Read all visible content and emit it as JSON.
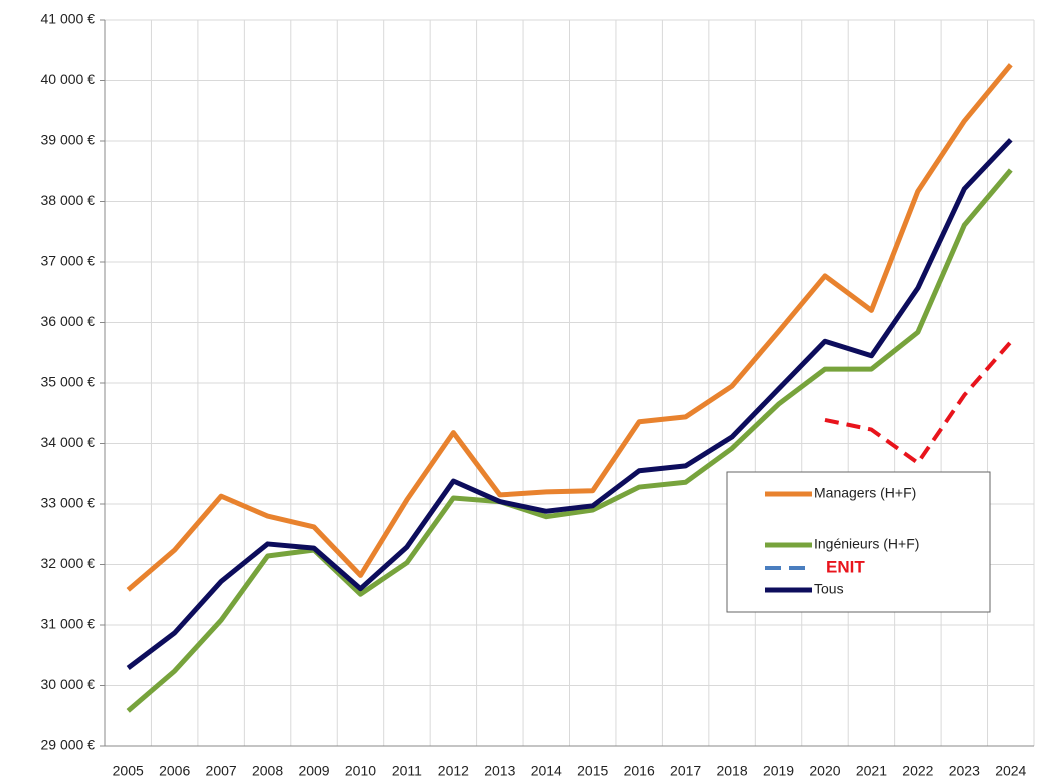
{
  "chart_data": {
    "type": "line",
    "categories": [
      "2005",
      "2006",
      "2007",
      "2008",
      "2009",
      "2010",
      "2011",
      "2012",
      "2013",
      "2014",
      "2015",
      "2016",
      "2017",
      "2018",
      "2019",
      "2020",
      "2021",
      "2022",
      "2023",
      "2024"
    ],
    "series": [
      {
        "name": "Managers (H+F)",
        "color": "#e8822e",
        "values": [
          31580,
          32240,
          33130,
          32800,
          32620,
          31820,
          33070,
          34180,
          33150,
          33200,
          33220,
          34360,
          34440,
          34950,
          35850,
          36770,
          36200,
          38170,
          39330,
          40260
        ]
      },
      {
        "name": "Ingénieurs (H+F)",
        "color": "#77a33c",
        "values": [
          29580,
          30240,
          31080,
          32140,
          32240,
          31510,
          32030,
          33100,
          33040,
          32790,
          32900,
          33280,
          33360,
          33920,
          34650,
          35230,
          35230,
          35840,
          37610,
          38520
        ]
      },
      {
        "name": "ENIT",
        "color": "#e8141c",
        "legend_color": "#4a7ebf",
        "dashed": true,
        "values": [
          null,
          null,
          null,
          null,
          null,
          null,
          null,
          null,
          null,
          null,
          null,
          null,
          null,
          null,
          null,
          34390,
          34230,
          33680,
          34800,
          35680
        ]
      },
      {
        "name": "Tous",
        "color": "#0d0d5c",
        "values": [
          30290,
          30870,
          31720,
          32340,
          32270,
          31600,
          32290,
          33380,
          33040,
          32880,
          32970,
          33550,
          33630,
          34110,
          34900,
          35690,
          35450,
          36570,
          38210,
          39020
        ]
      }
    ],
    "ylim": [
      29000,
      41000
    ],
    "yticks": [
      {
        "value": 29000,
        "label": "29 000 €"
      },
      {
        "value": 30000,
        "label": "30 000 €"
      },
      {
        "value": 31000,
        "label": "31 000 €"
      },
      {
        "value": 32000,
        "label": "32 000 €"
      },
      {
        "value": 33000,
        "label": "33 000 €"
      },
      {
        "value": 34000,
        "label": "34 000 €"
      },
      {
        "value": 35000,
        "label": "35 000 €"
      },
      {
        "value": 36000,
        "label": "36 000 €"
      },
      {
        "value": 37000,
        "label": "37 000 €"
      },
      {
        "value": 38000,
        "label": "38 000 €"
      },
      {
        "value": 39000,
        "label": "39 000 €"
      },
      {
        "value": 40000,
        "label": "40 000 €"
      },
      {
        "value": 41000,
        "label": "41 000 €"
      }
    ],
    "grid": true,
    "legend": "lower right"
  }
}
